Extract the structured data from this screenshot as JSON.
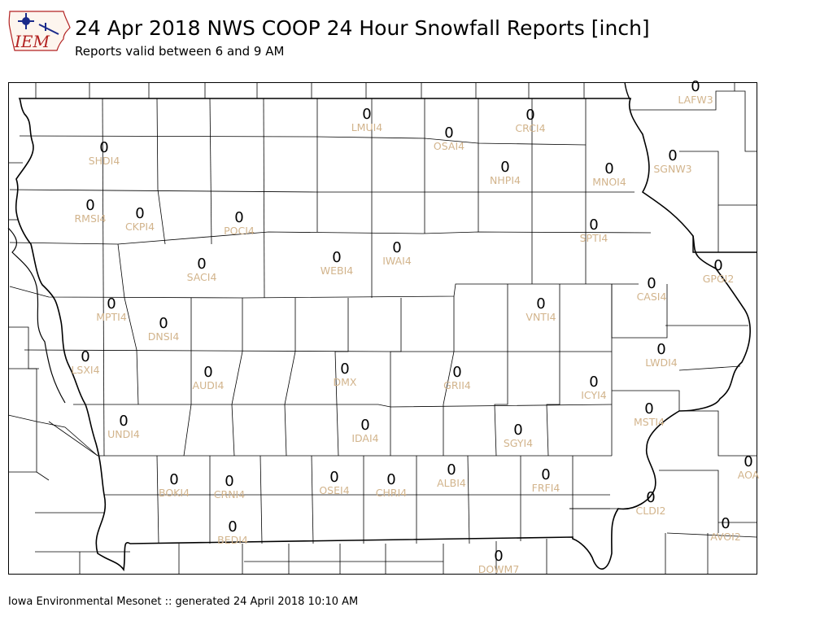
{
  "title": "24 Apr 2018 NWS COOP 24 Hour Snowfall Reports [inch]",
  "subtitle": "Reports valid between 6 and 9 AM",
  "footer": "Iowa Environmental Mesonet :: generated 24 April 2018 10:10 AM",
  "logo": {
    "text": "IEM",
    "colors": {
      "text": "#b22222",
      "state": "#1a2a8a"
    }
  },
  "colors": {
    "value_text": "#000000",
    "station_label": "#d2b48c",
    "boundary": "#000000"
  },
  "stations": [
    {
      "id": "LAFW3",
      "value": "0"
    },
    {
      "id": "LMUI4",
      "value": "0"
    },
    {
      "id": "CRCI4",
      "value": "0"
    },
    {
      "id": "OSAI4",
      "value": "0"
    },
    {
      "id": "SHDI4",
      "value": "0"
    },
    {
      "id": "SGNW3",
      "value": "0"
    },
    {
      "id": "NHPI4",
      "value": "0"
    },
    {
      "id": "MNOI4",
      "value": "0"
    },
    {
      "id": "RMSI4",
      "value": "0"
    },
    {
      "id": "CKPI4",
      "value": "0"
    },
    {
      "id": "POCI4",
      "value": "0"
    },
    {
      "id": "SPTI4",
      "value": "0"
    },
    {
      "id": "IWAI4",
      "value": "0"
    },
    {
      "id": "WEBI4",
      "value": "0"
    },
    {
      "id": "SACI4",
      "value": "0"
    },
    {
      "id": "GPGI2",
      "value": "0"
    },
    {
      "id": "CASI4",
      "value": "0"
    },
    {
      "id": "MPTI4",
      "value": "0"
    },
    {
      "id": "VNTI4",
      "value": "0"
    },
    {
      "id": "DNSI4",
      "value": "0"
    },
    {
      "id": "LWDI4",
      "value": "0"
    },
    {
      "id": "LSXI4",
      "value": "0"
    },
    {
      "id": "AUDI4",
      "value": "0"
    },
    {
      "id": "DMX",
      "value": "0"
    },
    {
      "id": "GRII4",
      "value": "0"
    },
    {
      "id": "ICYI4",
      "value": "0"
    },
    {
      "id": "MSTI4",
      "value": "0"
    },
    {
      "id": "UNDI4",
      "value": "0"
    },
    {
      "id": "IDAI4",
      "value": "0"
    },
    {
      "id": "SGYI4",
      "value": "0"
    },
    {
      "id": "AOA",
      "value": "0"
    },
    {
      "id": "ALBI4",
      "value": "0"
    },
    {
      "id": "FRFI4",
      "value": "0"
    },
    {
      "id": "BOKI4",
      "value": "0"
    },
    {
      "id": "CRNI4",
      "value": "0"
    },
    {
      "id": "OSEI4",
      "value": "0"
    },
    {
      "id": "CHRI4",
      "value": "0"
    },
    {
      "id": "CLDI2",
      "value": "0"
    },
    {
      "id": "AVOI2",
      "value": "0"
    },
    {
      "id": "BEDI4",
      "value": "0"
    },
    {
      "id": "DOWM7",
      "value": "0"
    }
  ]
}
